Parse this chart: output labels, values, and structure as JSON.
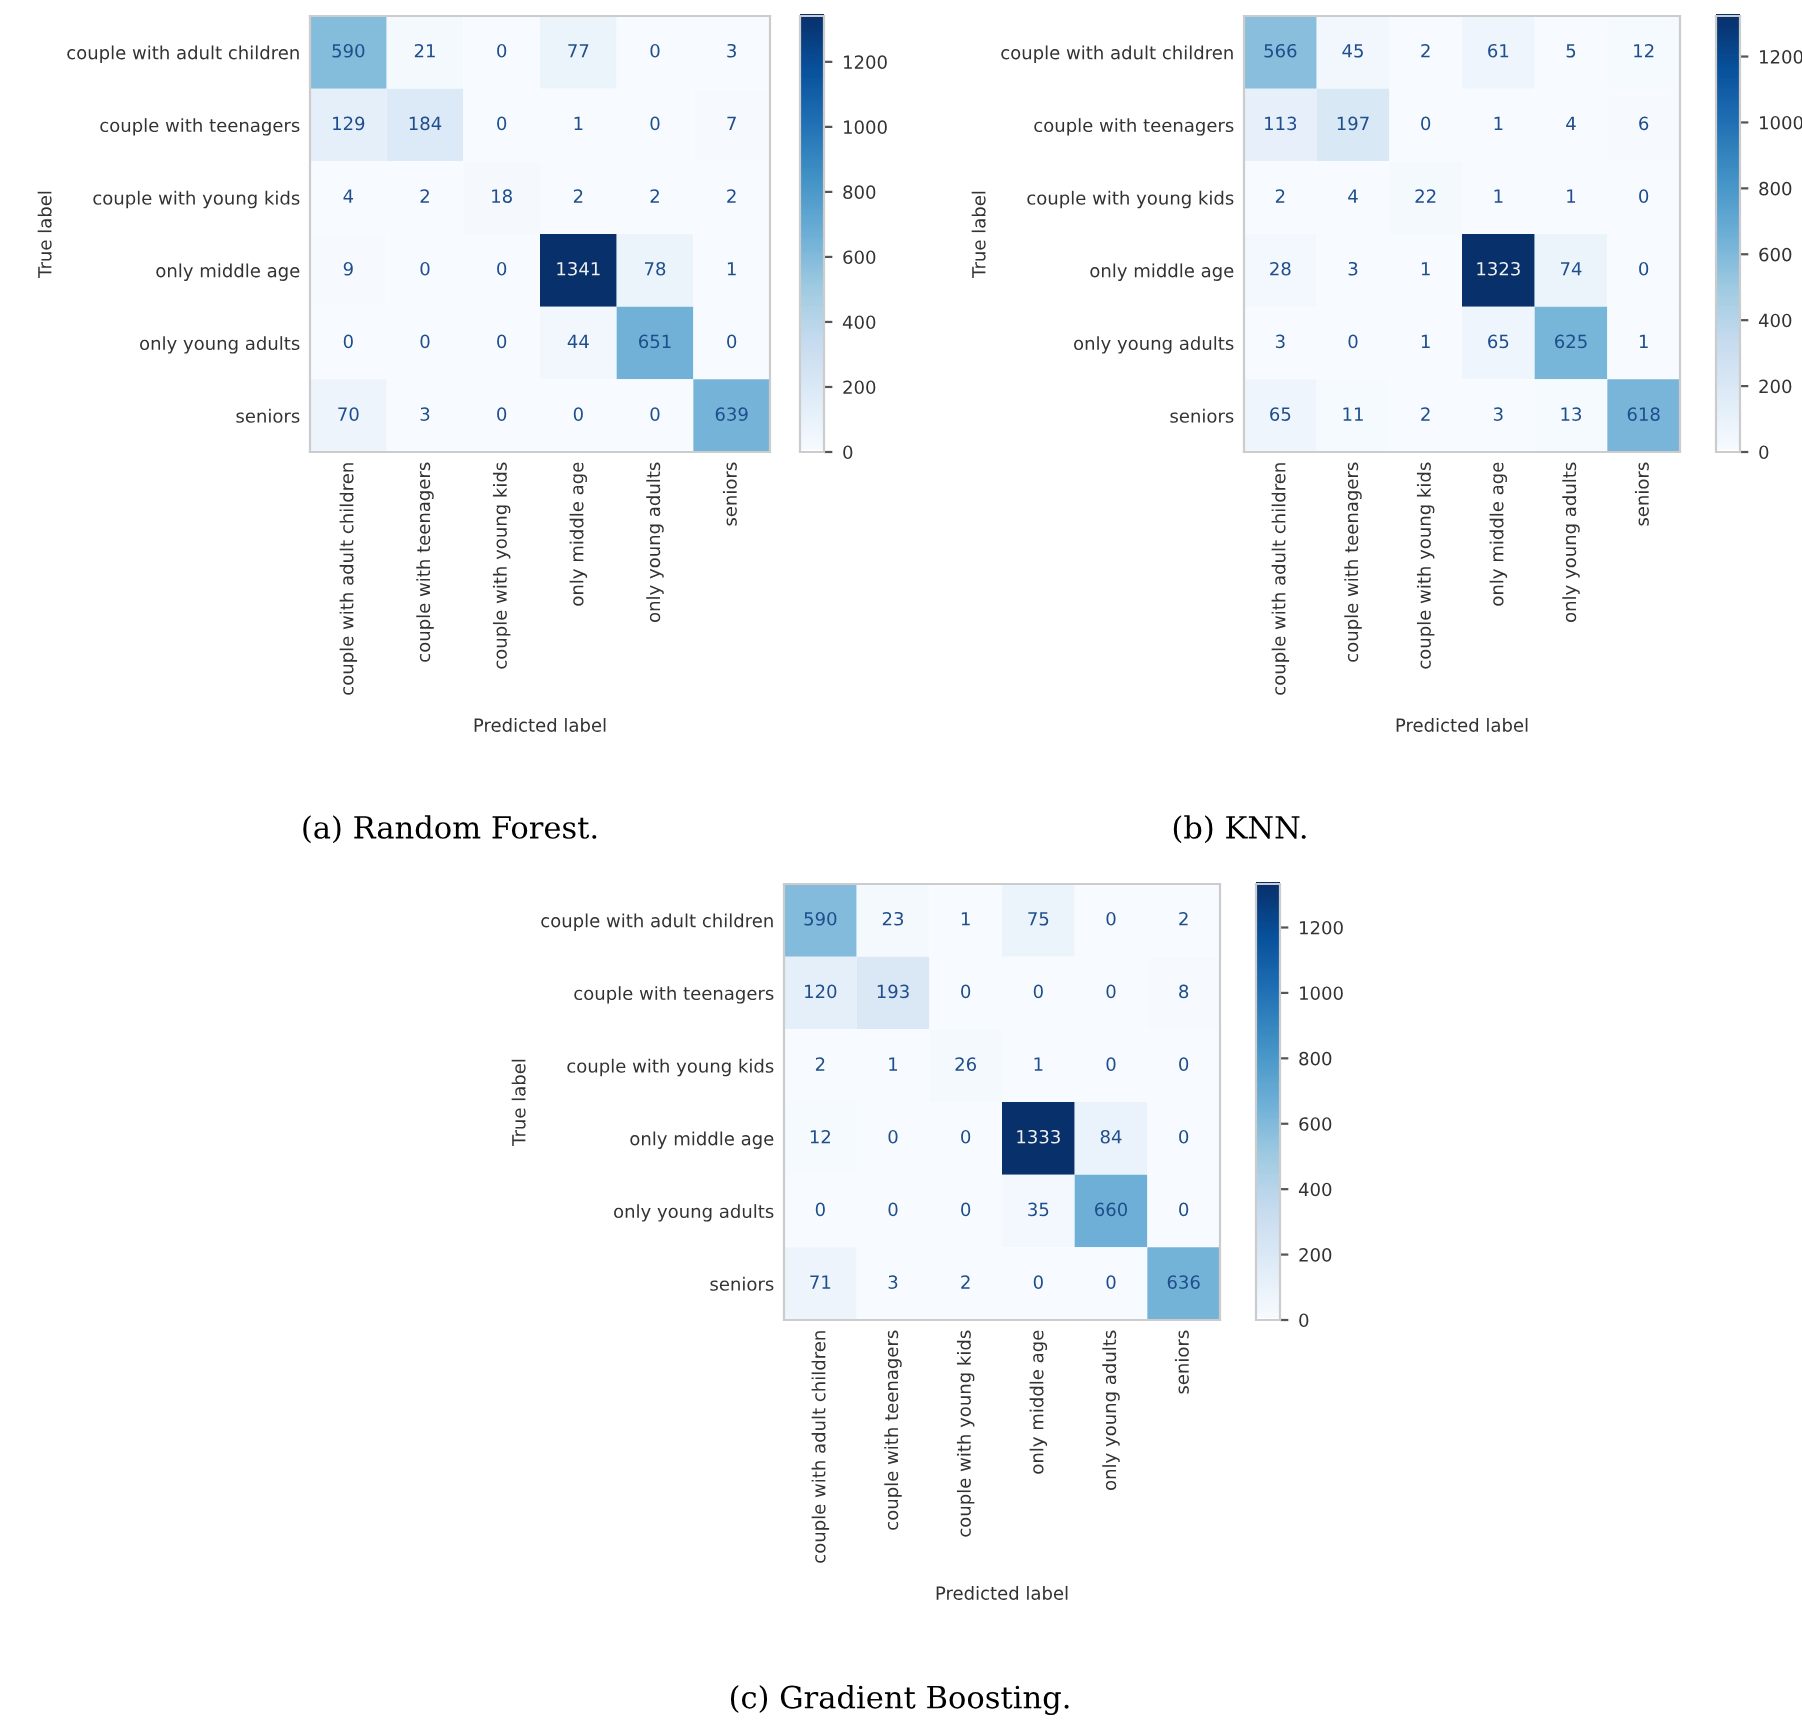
{
  "chart_data": [
    {
      "type": "heatmap",
      "title": "(a) Random Forest.",
      "xlabel": "Predicted label",
      "ylabel": "True label",
      "categories": [
        "couple with adult children",
        "couple with teenagers",
        "couple with young kids",
        "only middle age",
        "only young adults",
        "seniors"
      ],
      "y_categories": [
        "couple with adult children",
        "couple with teenagers",
        "couple with young kids",
        "only middle age",
        "only young adults",
        "seniors"
      ],
      "cells": [
        [
          590,
          21,
          0,
          77,
          0,
          3
        ],
        [
          129,
          184,
          0,
          1,
          0,
          7
        ],
        [
          4,
          2,
          18,
          2,
          2,
          2
        ],
        [
          9,
          0,
          0,
          1341,
          78,
          1
        ],
        [
          0,
          0,
          0,
          44,
          651,
          0
        ],
        [
          70,
          3,
          0,
          0,
          0,
          639
        ]
      ],
      "clim": [
        0,
        1341
      ],
      "cticks": [
        0,
        200,
        400,
        600,
        800,
        1000,
        1200
      ],
      "data_labels": true,
      "grid": false
    },
    {
      "type": "heatmap",
      "title": "(b) KNN.",
      "xlabel": "Predicted label",
      "ylabel": "True label",
      "categories": [
        "couple with adult children",
        "couple with teenagers",
        "couple with young kids",
        "only middle age",
        "only young adults",
        "seniors"
      ],
      "y_categories": [
        "couple with adult children",
        "couple with teenagers",
        "couple with young kids",
        "only middle age",
        "only young adults",
        "seniors"
      ],
      "cells": [
        [
          566,
          45,
          2,
          61,
          5,
          12
        ],
        [
          113,
          197,
          0,
          1,
          4,
          6
        ],
        [
          2,
          4,
          22,
          1,
          1,
          0
        ],
        [
          28,
          3,
          1,
          1323,
          74,
          0
        ],
        [
          3,
          0,
          1,
          65,
          625,
          1
        ],
        [
          65,
          11,
          2,
          3,
          13,
          618
        ]
      ],
      "clim": [
        0,
        1323
      ],
      "cticks": [
        0,
        200,
        400,
        600,
        800,
        1000,
        1200
      ],
      "data_labels": true,
      "grid": false
    },
    {
      "type": "heatmap",
      "title": "(c) Gradient Boosting.",
      "xlabel": "Predicted label",
      "ylabel": "True label",
      "categories": [
        "couple with adult children",
        "couple with teenagers",
        "couple with young kids",
        "only middle age",
        "only young adults",
        "seniors"
      ],
      "y_categories": [
        "couple with adult children",
        "couple with teenagers",
        "couple with young kids",
        "only middle age",
        "only young adults",
        "seniors"
      ],
      "cells": [
        [
          590,
          23,
          1,
          75,
          0,
          2
        ],
        [
          120,
          193,
          0,
          0,
          0,
          8
        ],
        [
          2,
          1,
          26,
          1,
          0,
          0
        ],
        [
          12,
          0,
          0,
          1333,
          84,
          0
        ],
        [
          0,
          0,
          0,
          35,
          660,
          0
        ],
        [
          71,
          3,
          2,
          0,
          0,
          636
        ]
      ],
      "clim": [
        0,
        1333
      ],
      "cticks": [
        0,
        200,
        400,
        600,
        800,
        1000,
        1200
      ],
      "data_labels": true,
      "grid": false
    }
  ]
}
